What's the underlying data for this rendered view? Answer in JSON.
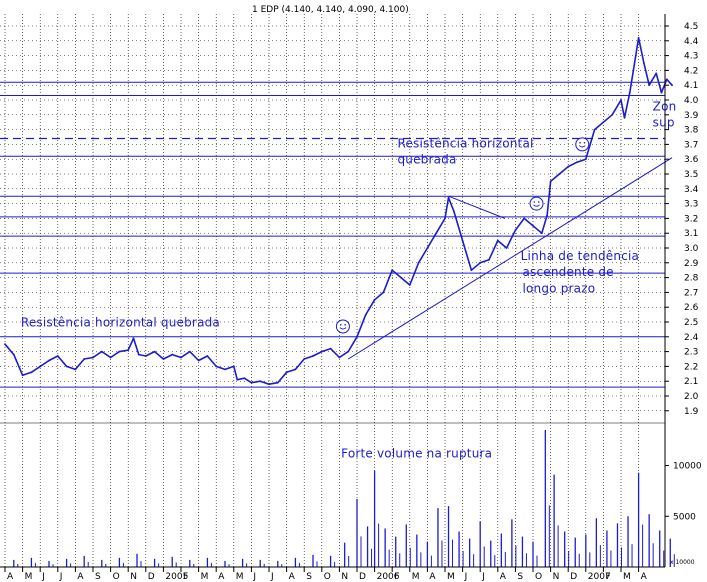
{
  "chart_data": {
    "type": "line",
    "title": "1 EDP (4.140, 4.140, 4.090, 4.100)",
    "price_axis": {
      "ylim": [
        1.8,
        4.55
      ],
      "ticks": [
        "1.9",
        "2.0",
        "2.1",
        "2.2",
        "2.3",
        "2.4",
        "2.5",
        "2.6",
        "2.7",
        "2.8",
        "2.9",
        "3.0",
        "3.1",
        "3.2",
        "3.3",
        "3.4",
        "3.5",
        "3.6",
        "3.7",
        "3.8",
        "3.9",
        "4.0",
        "4.1",
        "4.2",
        "4.3",
        "4.4",
        "4.5"
      ]
    },
    "volume_axis": {
      "ylim": [
        0,
        13500
      ],
      "ticks": [
        "5000",
        "10000"
      ],
      "scale_label": "x 10000"
    },
    "x_axis": {
      "ticks": [
        "A",
        "M",
        "J",
        "J",
        "A",
        "S",
        "O",
        "N",
        "D",
        "2005",
        "F",
        "M",
        "A",
        "M",
        "J",
        "J",
        "A",
        "S",
        "O",
        "N",
        "D",
        "2006",
        "F",
        "M",
        "A",
        "M",
        "J",
        "J",
        "A",
        "S",
        "O",
        "N",
        "D",
        "2007",
        "F",
        "M",
        "A"
      ]
    },
    "horizontal_lines": [
      2.06,
      2.4,
      2.83,
      3.08,
      3.21,
      3.35,
      3.62,
      4.03,
      4.12
    ],
    "dashed_lines": [
      3.74
    ],
    "trendlines": [
      {
        "from": {
          "month": 19.5,
          "price": 2.25
        },
        "to": {
          "month": 37.9,
          "price": 3.61
        }
      },
      {
        "from": {
          "month": 25.2,
          "price": 3.35
        },
        "to": {
          "month": 28.4,
          "price": 3.2
        }
      }
    ],
    "annotations": [
      {
        "text": "Resistência horizontal quebrada",
        "month": 0.9,
        "price": 2.47
      },
      {
        "text": "Resistência horizontal",
        "month": 22.3,
        "price": 3.68
      },
      {
        "text": "quebrada",
        "month": 22.3,
        "price": 3.57
      },
      {
        "text": "Linha de tendência",
        "month": 29.3,
        "price": 2.92
      },
      {
        "text": "ascendente de",
        "month": 29.4,
        "price": 2.81
      },
      {
        "text": "longo prazo",
        "month": 29.4,
        "price": 2.7
      },
      {
        "text": "Zon",
        "month": 36.8,
        "price": 3.93
      },
      {
        "text": "sup",
        "month": 36.8,
        "price": 3.82
      },
      {
        "text": "Forte volume na ruptura",
        "month": 19.1,
        "vol": 10800
      }
    ],
    "smileys": [
      {
        "month": 19.2,
        "price": 2.47
      },
      {
        "month": 30.2,
        "price": 3.3
      },
      {
        "month": 32.8,
        "price": 3.7
      }
    ],
    "price_series": [
      {
        "month": 0.0,
        "price": 2.35
      },
      {
        "month": 0.5,
        "price": 2.28
      },
      {
        "month": 1.0,
        "price": 2.14
      },
      {
        "month": 1.5,
        "price": 2.16
      },
      {
        "month": 2.0,
        "price": 2.2
      },
      {
        "month": 2.5,
        "price": 2.24
      },
      {
        "month": 3.0,
        "price": 2.27
      },
      {
        "month": 3.5,
        "price": 2.2
      },
      {
        "month": 4.0,
        "price": 2.18
      },
      {
        "month": 4.5,
        "price": 2.25
      },
      {
        "month": 5.0,
        "price": 2.26
      },
      {
        "month": 5.5,
        "price": 2.3
      },
      {
        "month": 6.0,
        "price": 2.26
      },
      {
        "month": 6.5,
        "price": 2.3
      },
      {
        "month": 7.0,
        "price": 2.31
      },
      {
        "month": 7.3,
        "price": 2.39
      },
      {
        "month": 7.6,
        "price": 2.28
      },
      {
        "month": 8.0,
        "price": 2.27
      },
      {
        "month": 8.5,
        "price": 2.3
      },
      {
        "month": 9.0,
        "price": 2.25
      },
      {
        "month": 9.5,
        "price": 2.28
      },
      {
        "month": 10.0,
        "price": 2.26
      },
      {
        "month": 10.5,
        "price": 2.3
      },
      {
        "month": 11.0,
        "price": 2.24
      },
      {
        "month": 11.5,
        "price": 2.27
      },
      {
        "month": 12.0,
        "price": 2.2
      },
      {
        "month": 12.5,
        "price": 2.18
      },
      {
        "month": 13.0,
        "price": 2.2
      },
      {
        "month": 13.2,
        "price": 2.11
      },
      {
        "month": 13.6,
        "price": 2.12
      },
      {
        "month": 14.0,
        "price": 2.09
      },
      {
        "month": 14.5,
        "price": 2.1
      },
      {
        "month": 15.0,
        "price": 2.08
      },
      {
        "month": 15.5,
        "price": 2.09
      },
      {
        "month": 16.0,
        "price": 2.16
      },
      {
        "month": 16.5,
        "price": 2.18
      },
      {
        "month": 17.0,
        "price": 2.25
      },
      {
        "month": 17.5,
        "price": 2.27
      },
      {
        "month": 18.0,
        "price": 2.3
      },
      {
        "month": 18.5,
        "price": 2.32
      },
      {
        "month": 19.0,
        "price": 2.26
      },
      {
        "month": 19.5,
        "price": 2.3
      },
      {
        "month": 20.0,
        "price": 2.4
      },
      {
        "month": 20.5,
        "price": 2.55
      },
      {
        "month": 21.0,
        "price": 2.65
      },
      {
        "month": 21.5,
        "price": 2.7
      },
      {
        "month": 22.0,
        "price": 2.85
      },
      {
        "month": 22.5,
        "price": 2.8
      },
      {
        "month": 23.0,
        "price": 2.75
      },
      {
        "month": 23.5,
        "price": 2.9
      },
      {
        "month": 24.0,
        "price": 3.0
      },
      {
        "month": 24.5,
        "price": 3.1
      },
      {
        "month": 25.0,
        "price": 3.2
      },
      {
        "month": 25.2,
        "price": 3.34
      },
      {
        "month": 25.5,
        "price": 3.25
      },
      {
        "month": 26.0,
        "price": 3.05
      },
      {
        "month": 26.5,
        "price": 2.85
      },
      {
        "month": 27.0,
        "price": 2.9
      },
      {
        "month": 27.5,
        "price": 2.92
      },
      {
        "month": 28.0,
        "price": 3.05
      },
      {
        "month": 28.5,
        "price": 3.0
      },
      {
        "month": 29.0,
        "price": 3.12
      },
      {
        "month": 29.5,
        "price": 3.2
      },
      {
        "month": 30.0,
        "price": 3.15
      },
      {
        "month": 30.5,
        "price": 3.1
      },
      {
        "month": 30.8,
        "price": 3.22
      },
      {
        "month": 31.0,
        "price": 3.45
      },
      {
        "month": 31.5,
        "price": 3.5
      },
      {
        "month": 32.0,
        "price": 3.55
      },
      {
        "month": 32.5,
        "price": 3.58
      },
      {
        "month": 33.0,
        "price": 3.6
      },
      {
        "month": 33.5,
        "price": 3.8
      },
      {
        "month": 34.0,
        "price": 3.85
      },
      {
        "month": 34.5,
        "price": 3.9
      },
      {
        "month": 35.0,
        "price": 4.0
      },
      {
        "month": 35.2,
        "price": 3.88
      },
      {
        "month": 35.5,
        "price": 4.05
      },
      {
        "month": 36.0,
        "price": 4.42
      },
      {
        "month": 36.3,
        "price": 4.25
      },
      {
        "month": 36.6,
        "price": 4.1
      },
      {
        "month": 37.0,
        "price": 4.18
      },
      {
        "month": 37.3,
        "price": 4.05
      },
      {
        "month": 37.6,
        "price": 4.14
      },
      {
        "month": 37.9,
        "price": 4.1
      }
    ],
    "volume_series": [
      {
        "month": 0.5,
        "vol": 700
      },
      {
        "month": 1.5,
        "vol": 900
      },
      {
        "month": 2.5,
        "vol": 600
      },
      {
        "month": 3.5,
        "vol": 800
      },
      {
        "month": 4.5,
        "vol": 1100
      },
      {
        "month": 5.5,
        "vol": 700
      },
      {
        "month": 6.5,
        "vol": 900
      },
      {
        "month": 7.5,
        "vol": 1300
      },
      {
        "month": 8.5,
        "vol": 800
      },
      {
        "month": 9.5,
        "vol": 1000
      },
      {
        "month": 10.5,
        "vol": 700
      },
      {
        "month": 11.5,
        "vol": 900
      },
      {
        "month": 12.5,
        "vol": 600
      },
      {
        "month": 13.5,
        "vol": 800
      },
      {
        "month": 14.5,
        "vol": 700
      },
      {
        "month": 15.5,
        "vol": 600
      },
      {
        "month": 16.5,
        "vol": 900
      },
      {
        "month": 17.5,
        "vol": 1200
      },
      {
        "month": 18.5,
        "vol": 1100
      },
      {
        "month": 19.3,
        "vol": 2400
      },
      {
        "month": 20.0,
        "vol": 6700
      },
      {
        "month": 20.6,
        "vol": 4000
      },
      {
        "month": 21.0,
        "vol": 9500
      },
      {
        "month": 21.6,
        "vol": 3800
      },
      {
        "month": 22.2,
        "vol": 3000
      },
      {
        "month": 22.8,
        "vol": 4200
      },
      {
        "month": 23.4,
        "vol": 3200
      },
      {
        "month": 24.0,
        "vol": 2500
      },
      {
        "month": 24.6,
        "vol": 5800
      },
      {
        "month": 25.2,
        "vol": 6000
      },
      {
        "month": 25.8,
        "vol": 3500
      },
      {
        "month": 26.4,
        "vol": 2800
      },
      {
        "month": 27.0,
        "vol": 4500
      },
      {
        "month": 27.6,
        "vol": 2600
      },
      {
        "month": 28.2,
        "vol": 3300
      },
      {
        "month": 28.8,
        "vol": 4700
      },
      {
        "month": 29.4,
        "vol": 3000
      },
      {
        "month": 30.0,
        "vol": 2500
      },
      {
        "month": 30.7,
        "vol": 13500
      },
      {
        "month": 31.2,
        "vol": 9100
      },
      {
        "month": 31.8,
        "vol": 3500
      },
      {
        "month": 32.4,
        "vol": 2900
      },
      {
        "month": 33.0,
        "vol": 3200
      },
      {
        "month": 33.6,
        "vol": 4800
      },
      {
        "month": 34.2,
        "vol": 3600
      },
      {
        "month": 34.8,
        "vol": 4300
      },
      {
        "month": 35.4,
        "vol": 5000
      },
      {
        "month": 36.0,
        "vol": 9300
      },
      {
        "month": 36.6,
        "vol": 5200
      },
      {
        "month": 37.2,
        "vol": 3600
      },
      {
        "month": 37.8,
        "vol": 2800
      }
    ]
  }
}
